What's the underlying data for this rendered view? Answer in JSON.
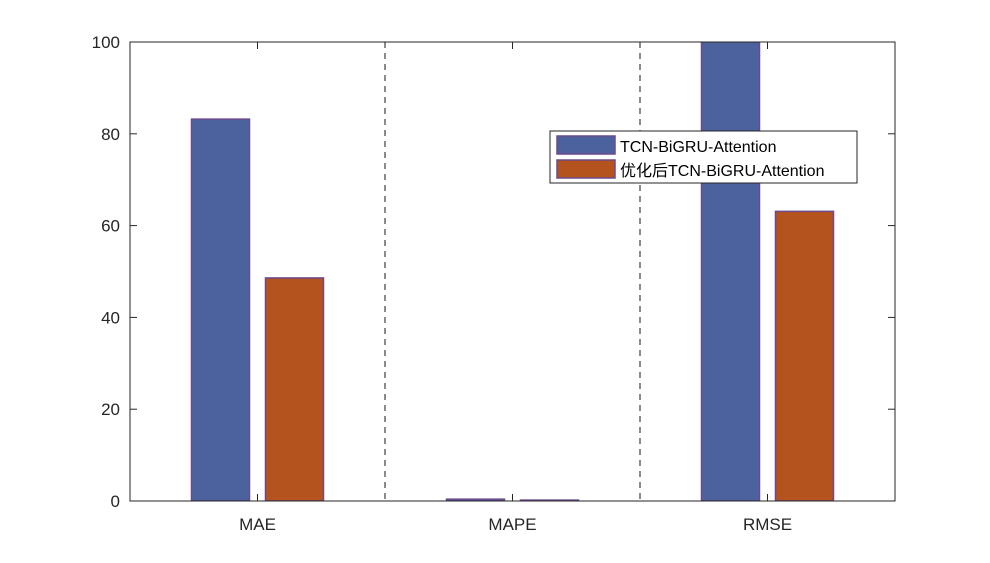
{
  "chart_data": {
    "type": "bar",
    "title": "",
    "xlabel": "",
    "ylabel": "",
    "categories": [
      "MAE",
      "MAPE",
      "RMSE"
    ],
    "series": [
      {
        "name": "TCN-BiGRU-Attention",
        "values": [
          83.2,
          0.4,
          105.0
        ]
      },
      {
        "name": "优化后TCN-BiGRU-Attention",
        "values": [
          48.6,
          0.2,
          63.1
        ]
      }
    ],
    "ylim": [
      0,
      100
    ],
    "yticks": [
      0,
      20,
      40,
      60,
      80,
      100
    ],
    "grid": false,
    "separators": "dashed vertical lines between categories",
    "legend": "upper-right inside axes",
    "colors": {
      "series": [
        "#4c629e",
        "#b5531e"
      ],
      "bar_edge": "#6a4a8c",
      "axis": "#262626",
      "separator": "#6e6e6e"
    }
  }
}
